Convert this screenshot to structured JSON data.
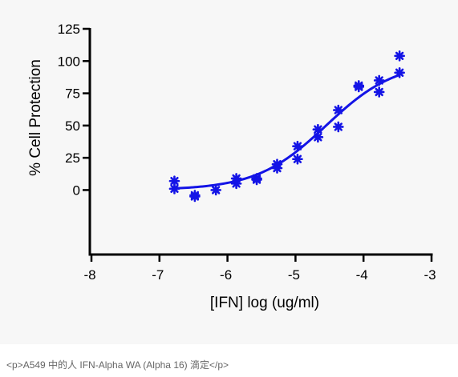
{
  "caption": "<p>A549 中的人 IFN-Alpha WA (Alpha 16) 滴定</p>",
  "colors": {
    "series": "#1414e6",
    "axis": "#000000",
    "panel_background": "#f7f7f7"
  },
  "chart_data": {
    "type": "scatter",
    "title": "",
    "xlabel": "[IFN] log (ug/ml)",
    "ylabel": "% Cell Protection",
    "xlim": [
      -8,
      -3
    ],
    "ylim": [
      -50,
      125
    ],
    "x_ticks": [
      -8,
      -7,
      -6,
      -5,
      -4,
      -3
    ],
    "y_ticks": [
      0,
      25,
      50,
      75,
      100,
      125
    ],
    "marker": "asterisk",
    "grid": false,
    "legend": "none",
    "series": [
      {
        "points": [
          {
            "x": -6.78,
            "y": 7
          },
          {
            "x": -6.78,
            "y": 1
          },
          {
            "x": -6.48,
            "y": -5
          },
          {
            "x": -6.48,
            "y": -4
          },
          {
            "x": -6.17,
            "y": 0
          },
          {
            "x": -5.87,
            "y": 9
          },
          {
            "x": -5.87,
            "y": 5
          },
          {
            "x": -5.57,
            "y": 9
          },
          {
            "x": -5.57,
            "y": 8
          },
          {
            "x": -5.27,
            "y": 20
          },
          {
            "x": -5.27,
            "y": 17
          },
          {
            "x": -4.97,
            "y": 34
          },
          {
            "x": -4.97,
            "y": 24
          },
          {
            "x": -4.67,
            "y": 47
          },
          {
            "x": -4.67,
            "y": 41
          },
          {
            "x": -4.37,
            "y": 62
          },
          {
            "x": -4.37,
            "y": 49
          },
          {
            "x": -4.07,
            "y": 81
          },
          {
            "x": -4.07,
            "y": 80
          },
          {
            "x": -3.77,
            "y": 85
          },
          {
            "x": -3.77,
            "y": 76
          },
          {
            "x": -3.47,
            "y": 104
          },
          {
            "x": -3.47,
            "y": 91
          }
        ],
        "fit": {
          "model": "sigmoidal dose-response",
          "bottom": 0,
          "top": 100,
          "log_ec50": -4.55,
          "hill_slope": 0.85,
          "x_range": [
            -6.78,
            -3.47
          ]
        }
      }
    ]
  }
}
